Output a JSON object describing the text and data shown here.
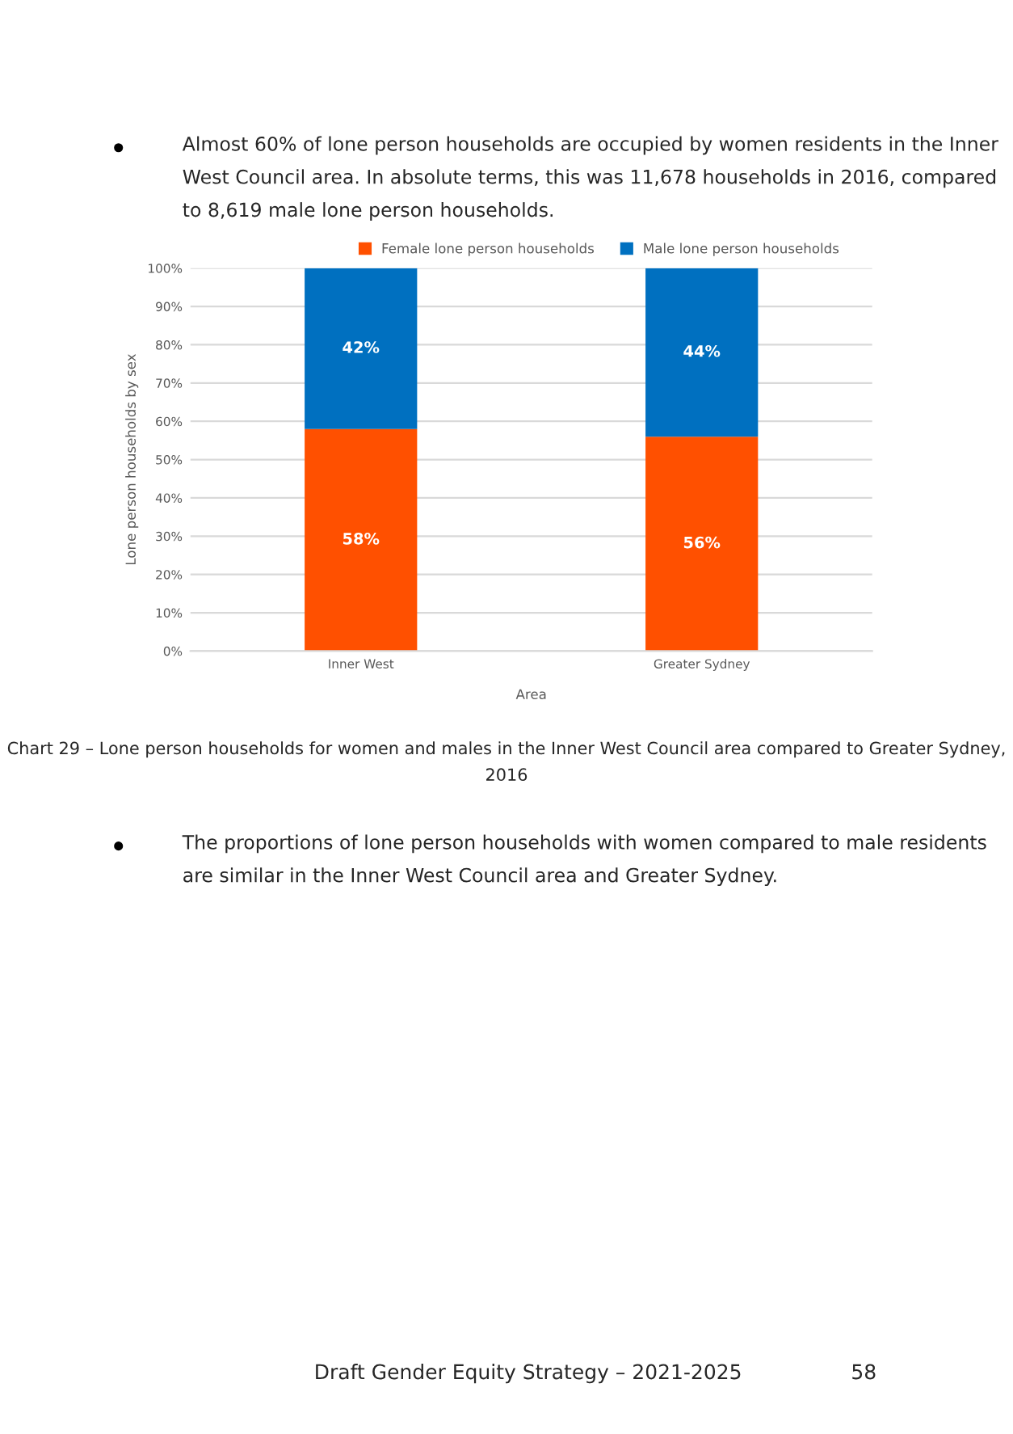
{
  "chart_data": {
    "type": "bar",
    "stacked": true,
    "xlabel": "Area",
    "ylabel": "Lone person households by sex",
    "categories": [
      "Inner West",
      "Greater Sydney"
    ],
    "series": [
      {
        "name": "Female lone person households",
        "color": "#ff5000",
        "values": [
          58,
          56
        ],
        "value_labels": [
          "58%",
          "56%"
        ]
      },
      {
        "name": "Male lone person households",
        "color": "#0070c0",
        "values": [
          42,
          44
        ],
        "value_labels": [
          "42%",
          "44%"
        ]
      }
    ],
    "ylim": [
      0,
      100
    ],
    "yticks": [
      {
        "value": 0,
        "label": "0%"
      },
      {
        "value": 10,
        "label": "10%"
      },
      {
        "value": 20,
        "label": "20%"
      },
      {
        "value": 30,
        "label": "30%"
      },
      {
        "value": 40,
        "label": "40%"
      },
      {
        "value": 50,
        "label": "50%"
      },
      {
        "value": 60,
        "label": "60%"
      },
      {
        "value": 70,
        "label": "70%"
      },
      {
        "value": 80,
        "label": "80%"
      },
      {
        "value": 90,
        "label": "90%"
      },
      {
        "value": 100,
        "label": "100%"
      }
    ],
    "grid": "y",
    "legend": "top",
    "annotations": [
      "Almost 60% of lone person households are occupied by women residents in the Inner West Council area. In absolute terms, this was 11,678 households in 2016, compared to 8,619 male lone person households.",
      "Chart 29 – Lone person households for women and males in the Inner West Council area compared to Greater Sydney, 2016",
      "The proportions of lone person households with women compared to male residents are similar in the Inner West Council area and Greater Sydney.",
      "Draft Gender Equity Strategy – 2021-2025",
      "58"
    ]
  }
}
